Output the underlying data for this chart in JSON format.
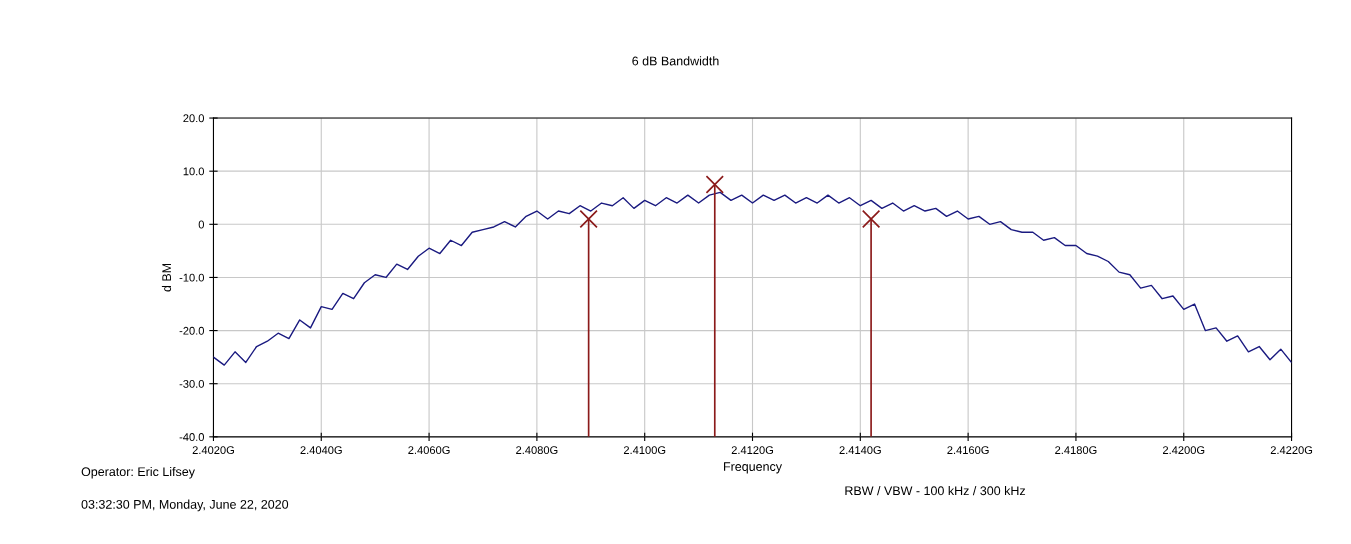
{
  "chart_data": {
    "type": "line",
    "title": "6 dB Bandwidth",
    "xlabel": "Frequency",
    "ylabel": "d BM",
    "annotations": [
      "Operator: Eric Lifsey",
      "03:32:30 PM, Monday, June 22, 2020",
      "RBW / VBW - 100 kHz / 300 kHz"
    ],
    "series": [
      {
        "type": "line",
        "color": "#1a1a80",
        "x": [
          2.402,
          2.4022,
          2.4024,
          2.4026,
          2.4028,
          2.403,
          2.4032,
          2.4034,
          2.4036,
          2.4038,
          2.404,
          2.4042,
          2.4044,
          2.4046,
          2.4048,
          2.405,
          2.4052,
          2.4054,
          2.4056,
          2.4058,
          2.406,
          2.4062,
          2.4064,
          2.4066,
          2.4068,
          2.407,
          2.4072,
          2.4074,
          2.4076,
          2.4078,
          2.408,
          2.4082,
          2.4084,
          2.4086,
          2.4088,
          2.409,
          2.4092,
          2.4094,
          2.4096,
          2.4098,
          2.41,
          2.4102,
          2.4104,
          2.4106,
          2.4108,
          2.411,
          2.4112,
          2.4114,
          2.4116,
          2.4118,
          2.412,
          2.4122,
          2.4124,
          2.4126,
          2.4128,
          2.413,
          2.4132,
          2.4134,
          2.4136,
          2.4138,
          2.414,
          2.4142,
          2.4144,
          2.4146,
          2.4148,
          2.415,
          2.4152,
          2.4154,
          2.4156,
          2.4158,
          2.416,
          2.4162,
          2.4164,
          2.4166,
          2.4168,
          2.417,
          2.4172,
          2.4174,
          2.4176,
          2.4178,
          2.418,
          2.4182,
          2.4184,
          2.4186,
          2.4188,
          2.419,
          2.4192,
          2.4194,
          2.4196,
          2.4198,
          2.42,
          2.4202,
          2.4204,
          2.4206,
          2.4208,
          2.421,
          2.4212,
          2.4214,
          2.4216,
          2.4218,
          2.422
        ],
        "values": [
          -25,
          -26.5,
          -24,
          -26,
          -23,
          -22,
          -20.5,
          -21.5,
          -18,
          -19.5,
          -15.5,
          -16,
          -13,
          -14,
          -11,
          -9.5,
          -10,
          -7.5,
          -8.5,
          -6,
          -4.5,
          -5.5,
          -3,
          -4,
          -1.5,
          -1,
          -0.5,
          0.5,
          -0.5,
          1.5,
          2.5,
          1,
          2.5,
          2,
          3.5,
          2.5,
          4,
          3.5,
          5,
          3,
          4.5,
          3.5,
          5,
          4,
          5.5,
          4,
          5.5,
          6,
          4.5,
          5.5,
          4,
          5.5,
          4.5,
          5.5,
          4,
          5,
          4,
          5.5,
          4,
          5,
          3.5,
          4.5,
          3,
          4,
          2.5,
          3.5,
          2.5,
          3,
          1.5,
          2.5,
          1,
          1.5,
          0,
          0.5,
          -1,
          -1.5,
          -1.5,
          -3,
          -2.5,
          -4,
          -4,
          -5.5,
          -6,
          -7,
          -9,
          -9.5,
          -12,
          -11.5,
          -14,
          -13.5,
          -16,
          -15,
          -20,
          -19.5,
          -22,
          -21,
          -24,
          -23,
          -25.5,
          -23.5,
          -26
        ]
      },
      {
        "type": "scatter",
        "color": "#8b1a1a",
        "marker": "cross",
        "x": [
          2.40896,
          2.4113,
          2.4142
        ],
        "errors": [
          [
            -40,
            1
          ],
          [
            -40,
            7.5
          ],
          [
            -40,
            1
          ]
        ],
        "values": [
          1,
          7.5,
          1
        ]
      }
    ],
    "xlim": [
      2.402,
      2.422
    ],
    "xticks": [
      {
        "value": 2.402,
        "label": "2.4020G"
      },
      {
        "value": 2.404,
        "label": "2.4040G"
      },
      {
        "value": 2.406,
        "label": "2.4060G"
      },
      {
        "value": 2.408,
        "label": "2.4080G"
      },
      {
        "value": 2.41,
        "label": "2.4100G"
      },
      {
        "value": 2.412,
        "label": "2.4120G"
      },
      {
        "value": 2.414,
        "label": "2.4140G"
      },
      {
        "value": 2.416,
        "label": "2.4160G"
      },
      {
        "value": 2.418,
        "label": "2.4180G"
      },
      {
        "value": 2.42,
        "label": "2.4200G"
      },
      {
        "value": 2.422,
        "label": "2.4220G"
      }
    ],
    "ylim": [
      -40,
      20
    ],
    "yticks": [
      {
        "value": 20,
        "label": "20.0"
      },
      {
        "value": 10,
        "label": "10.0"
      },
      0,
      {
        "value": -10,
        "label": "-10.0"
      },
      {
        "value": -20,
        "label": "-20.0"
      },
      {
        "value": -30,
        "label": "-30.0"
      },
      {
        "value": -40,
        "label": "-40.0"
      }
    ],
    "grid": true
  }
}
